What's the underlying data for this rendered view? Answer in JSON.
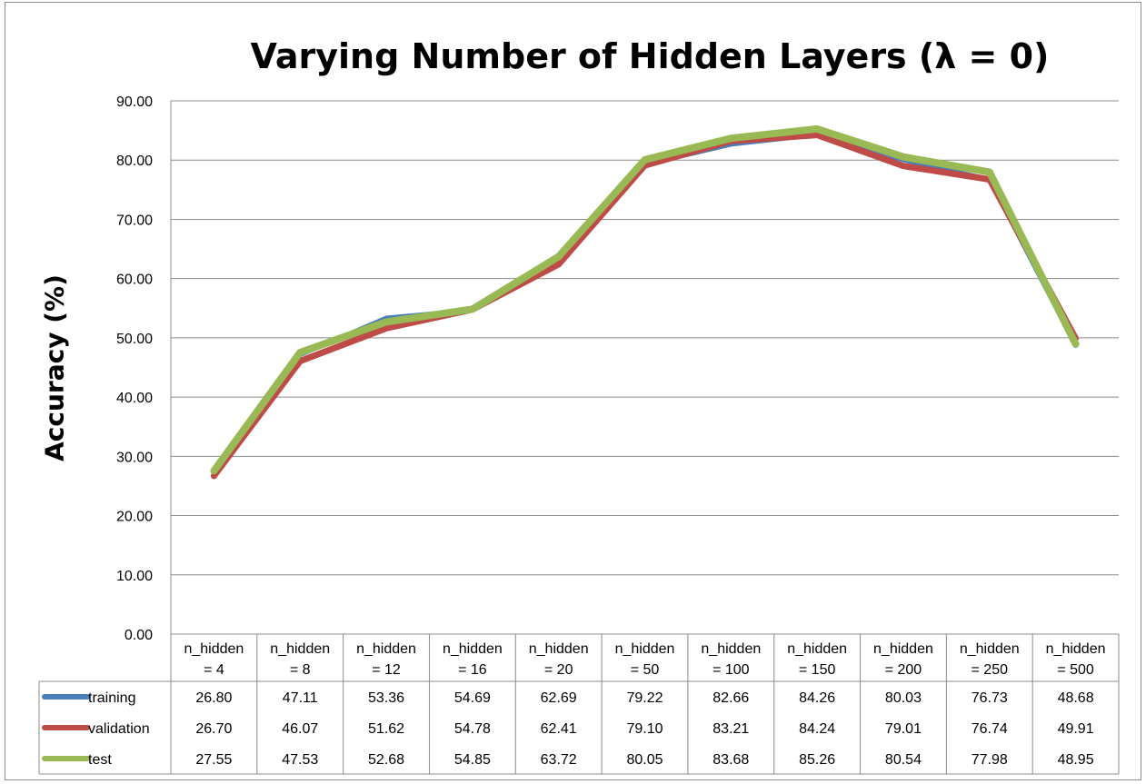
{
  "chart_data": {
    "type": "line",
    "title": "Varying Number of Hidden Layers (λ = 0)",
    "ylabel": "Accuracy (%)",
    "xlabel": "",
    "ylim": [
      0,
      90
    ],
    "yticks": [
      "0.00",
      "10.00",
      "20.00",
      "30.00",
      "40.00",
      "50.00",
      "60.00",
      "70.00",
      "80.00",
      "90.00"
    ],
    "grid": true,
    "legend": "data-table-left",
    "categories": [
      [
        "n_hidden",
        "= 4"
      ],
      [
        "n_hidden",
        "= 8"
      ],
      [
        "n_hidden",
        "= 12"
      ],
      [
        "n_hidden",
        "= 16"
      ],
      [
        "n_hidden",
        "= 20"
      ],
      [
        "n_hidden",
        "= 50"
      ],
      [
        "n_hidden",
        "= 100"
      ],
      [
        "n_hidden",
        "= 150"
      ],
      [
        "n_hidden",
        "= 200"
      ],
      [
        "n_hidden",
        "= 250"
      ],
      [
        "n_hidden",
        "= 500"
      ]
    ],
    "series": [
      {
        "name": "training",
        "color": "#4a7ebb",
        "values": [
          26.8,
          47.11,
          53.36,
          54.69,
          62.69,
          79.22,
          82.66,
          84.26,
          80.03,
          76.73,
          48.68
        ],
        "labels": [
          "26.80",
          "47.11",
          "53.36",
          "54.69",
          "62.69",
          "79.22",
          "82.66",
          "84.26",
          "80.03",
          "76.73",
          "48.68"
        ]
      },
      {
        "name": "validation",
        "color": "#be4b48",
        "values": [
          26.7,
          46.07,
          51.62,
          54.78,
          62.41,
          79.1,
          83.21,
          84.24,
          79.01,
          76.74,
          49.91
        ],
        "labels": [
          "26.70",
          "46.07",
          "51.62",
          "54.78",
          "62.41",
          "79.10",
          "83.21",
          "84.24",
          "79.01",
          "76.74",
          "49.91"
        ]
      },
      {
        "name": "test",
        "color": "#98b954",
        "values": [
          27.55,
          47.53,
          52.68,
          54.85,
          63.72,
          80.05,
          83.68,
          85.26,
          80.54,
          77.98,
          48.95
        ],
        "labels": [
          "27.55",
          "47.53",
          "52.68",
          "54.85",
          "63.72",
          "80.05",
          "83.68",
          "85.26",
          "80.54",
          "77.98",
          "48.95"
        ]
      }
    ]
  }
}
